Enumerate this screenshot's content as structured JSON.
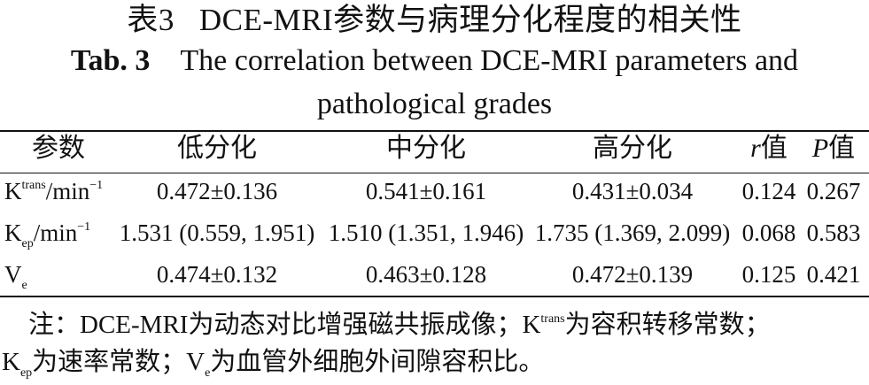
{
  "title_cn": {
    "number": "表3",
    "text": "DCE-MRI参数与病理分化程度的相关性"
  },
  "title_en": {
    "number": "Tab. 3",
    "text": "The correlation between DCE-MRI parameters and",
    "text_line2": "pathological grades"
  },
  "table": {
    "headers": {
      "param": "参数",
      "low": "低分化",
      "mid": "中分化",
      "high": "高分化",
      "r_letter": "r",
      "r_suffix": "值",
      "p_letter": "P",
      "p_suffix": "值"
    },
    "rows": [
      {
        "param_base": "K",
        "param_sup": "trans",
        "param_sub": "",
        "param_unit": "/min",
        "param_unit_sup": "−1",
        "low": "0.472±0.136",
        "mid": "0.541±0.161",
        "high": "0.431±0.034",
        "r": "0.124",
        "p": "0.267"
      },
      {
        "param_base": "K",
        "param_sup": "",
        "param_sub": "ep",
        "param_unit": "/min",
        "param_unit_sup": "−1",
        "low": "1.531 (0.559, 1.951)",
        "mid": "1.510 (1.351, 1.946)",
        "high": "1.735 (1.369, 2.099)",
        "r": "0.068",
        "p": "0.583"
      },
      {
        "param_base": "V",
        "param_sup": "",
        "param_sub": "e",
        "param_unit": "",
        "param_unit_sup": "",
        "low": "0.474±0.132",
        "mid": "0.463±0.128",
        "high": "0.472±0.139",
        "r": "0.125",
        "p": "0.421"
      }
    ]
  },
  "note": {
    "line1_a": "注：DCE-MRI为动态对比增强磁共振成像；K",
    "line1_sup": "trans",
    "line1_b": "为容积转移常数；",
    "line2_a": "K",
    "line2_sub1": "ep",
    "line2_b": "为速率常数；V",
    "line2_sub2": "e",
    "line2_c": "为血管外细胞外间隙容积比。"
  }
}
